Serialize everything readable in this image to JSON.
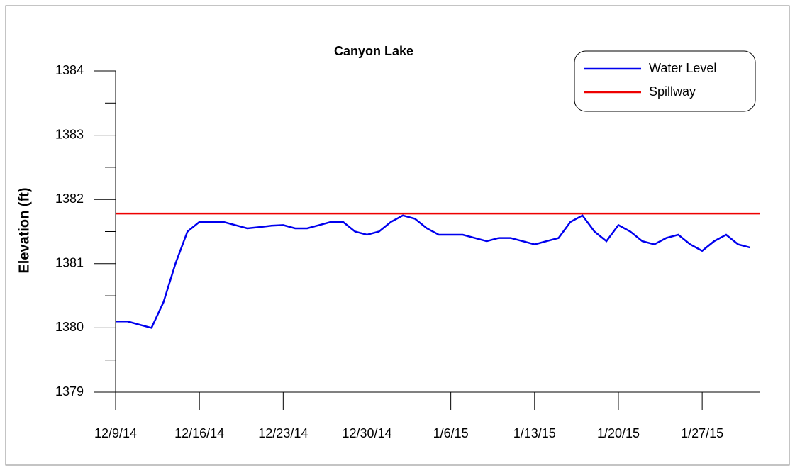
{
  "chart_data": {
    "type": "line",
    "title": "Canyon Lake",
    "y_label": "Elevation (ft)",
    "x": [
      "12/9/14",
      "12/10/14",
      "12/11/14",
      "12/12/14",
      "12/13/14",
      "12/14/14",
      "12/15/14",
      "12/16/14",
      "12/17/14",
      "12/18/14",
      "12/19/14",
      "12/20/14",
      "12/21/14",
      "12/22/14",
      "12/23/14",
      "12/24/14",
      "12/25/14",
      "12/26/14",
      "12/27/14",
      "12/28/14",
      "12/29/14",
      "12/30/14",
      "12/31/14",
      "1/1/15",
      "1/2/15",
      "1/3/15",
      "1/4/15",
      "1/5/15",
      "1/6/15",
      "1/7/15",
      "1/8/15",
      "1/9/15",
      "1/10/15",
      "1/11/15",
      "1/12/15",
      "1/13/15",
      "1/14/15",
      "1/15/15",
      "1/16/15",
      "1/17/15",
      "1/18/15",
      "1/19/15",
      "1/20/15",
      "1/21/15",
      "1/22/15",
      "1/23/15",
      "1/24/15",
      "1/25/15",
      "1/26/15",
      "1/27/15",
      "1/28/15",
      "1/29/15",
      "1/30/15",
      "1/31/15"
    ],
    "series": [
      {
        "name": "Water Level",
        "color": "#0000ee",
        "values": [
          1380.1,
          1380.1,
          1380.05,
          1380.0,
          1380.4,
          1381.0,
          1381.5,
          1381.65,
          1381.65,
          1381.65,
          1381.6,
          1381.55,
          1381.57,
          1381.59,
          1381.6,
          1381.55,
          1381.55,
          1381.6,
          1381.65,
          1381.65,
          1381.5,
          1381.45,
          1381.5,
          1381.65,
          1381.75,
          1381.7,
          1381.55,
          1381.45,
          1381.45,
          1381.45,
          1381.4,
          1381.35,
          1381.4,
          1381.4,
          1381.35,
          1381.3,
          1381.35,
          1381.4,
          1381.65,
          1381.75,
          1381.5,
          1381.35,
          1381.6,
          1381.5,
          1381.35,
          1381.3,
          1381.4,
          1381.45,
          1381.3,
          1381.2,
          1381.35,
          1381.45,
          1381.3,
          1381.25
        ]
      }
    ],
    "reference_lines": [
      {
        "name": "Spillway",
        "color": "#ee0000",
        "value": 1381.78
      }
    ],
    "xlim": [
      "12/9/14",
      "1/31/15"
    ],
    "xticks": [
      "12/9/14",
      "12/16/14",
      "12/23/14",
      "12/30/14",
      "1/6/15",
      "1/13/15",
      "1/20/15",
      "1/27/15"
    ],
    "ylim": [
      1379,
      1384
    ],
    "yticks": [
      1379,
      1380,
      1381,
      1382,
      1383,
      1384
    ],
    "yminorticks": [
      1379.5,
      1380.5,
      1381.5,
      1382.5,
      1383.5
    ],
    "legend": "upper right"
  }
}
